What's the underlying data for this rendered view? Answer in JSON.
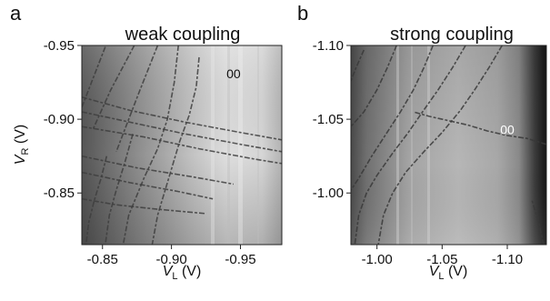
{
  "chart_data": [
    {
      "type": "heatmap",
      "panel_letter": "a",
      "title": "weak coupling",
      "region_label": "00",
      "xlabel_main": "V",
      "xlabel_sub": "L",
      "xlabel_unit": " (V)",
      "ylabel_main": "V",
      "ylabel_sub": "R",
      "ylabel_unit": " (V)",
      "x_range": [
        -0.835,
        -0.98
      ],
      "y_range": [
        -0.815,
        -0.95
      ],
      "x_ticks": [
        {
          "value": -0.85,
          "label": "-0.85"
        },
        {
          "value": -0.9,
          "label": "-0.90"
        },
        {
          "value": -0.95,
          "label": "-0.95"
        }
      ],
      "y_ticks": [
        {
          "value": -0.95,
          "label": "-0.95"
        },
        {
          "value": -0.9,
          "label": "-0.90"
        },
        {
          "value": -0.85,
          "label": "-0.85"
        }
      ],
      "region_label_pos": [
        -0.945,
        -0.931
      ],
      "colormap": "grayscale, darker at lower left, bright region near '00' at upper right",
      "transition_lines": [
        [
          [
            -0.852,
            -0.949
          ],
          [
            -0.842,
            -0.925
          ],
          [
            -0.835,
            -0.908
          ]
        ],
        [
          [
            -0.873,
            -0.95
          ],
          [
            -0.856,
            -0.92
          ],
          [
            -0.843,
            -0.893
          ]
        ],
        [
          [
            -0.89,
            -0.95
          ],
          [
            -0.876,
            -0.917
          ],
          [
            -0.86,
            -0.878
          ]
        ],
        [
          [
            -0.905,
            -0.95
          ],
          [
            -0.902,
            -0.925
          ],
          [
            -0.897,
            -0.9
          ],
          [
            -0.89,
            -0.88
          ],
          [
            -0.88,
            -0.86
          ],
          [
            -0.869,
            -0.835
          ],
          [
            -0.865,
            -0.815
          ]
        ],
        [
          [
            -0.92,
            -0.942
          ],
          [
            -0.918,
            -0.922
          ],
          [
            -0.913,
            -0.903
          ],
          [
            -0.906,
            -0.885
          ],
          [
            -0.898,
            -0.86
          ],
          [
            -0.89,
            -0.835
          ],
          [
            -0.886,
            -0.815
          ]
        ],
        [
          [
            -0.835,
            -0.915
          ],
          [
            -0.87,
            -0.906
          ],
          [
            -0.91,
            -0.898
          ],
          [
            -0.95,
            -0.891
          ],
          [
            -0.98,
            -0.886
          ]
        ],
        [
          [
            -0.835,
            -0.905
          ],
          [
            -0.87,
            -0.898
          ],
          [
            -0.91,
            -0.89
          ],
          [
            -0.95,
            -0.883
          ],
          [
            -0.98,
            -0.878
          ]
        ],
        [
          [
            -0.835,
            -0.895
          ],
          [
            -0.88,
            -0.888
          ],
          [
            -0.92,
            -0.88
          ],
          [
            -0.96,
            -0.873
          ],
          [
            -0.98,
            -0.87
          ]
        ],
        [
          [
            -0.835,
            -0.875
          ],
          [
            -0.875,
            -0.867
          ],
          [
            -0.915,
            -0.861
          ],
          [
            -0.945,
            -0.856
          ]
        ],
        [
          [
            -0.835,
            -0.864
          ],
          [
            -0.87,
            -0.857
          ],
          [
            -0.905,
            -0.851
          ],
          [
            -0.93,
            -0.846
          ]
        ],
        [
          [
            -0.835,
            -0.846
          ],
          [
            -0.86,
            -0.842
          ],
          [
            -0.89,
            -0.839
          ],
          [
            -0.925,
            -0.836
          ]
        ],
        [
          [
            -0.853,
            -0.875
          ],
          [
            -0.849,
            -0.86
          ],
          [
            -0.844,
            -0.845
          ],
          [
            -0.84,
            -0.83
          ],
          [
            -0.838,
            -0.815
          ]
        ],
        [
          [
            -0.872,
            -0.89
          ],
          [
            -0.866,
            -0.87
          ],
          [
            -0.86,
            -0.852
          ],
          [
            -0.855,
            -0.835
          ],
          [
            -0.852,
            -0.815
          ]
        ]
      ]
    },
    {
      "type": "heatmap",
      "panel_letter": "b",
      "title": "strong coupling",
      "region_label": "00",
      "xlabel_main": "V",
      "xlabel_sub": "L",
      "xlabel_unit": " (V)",
      "ylabel_main": "",
      "ylabel_sub": "",
      "ylabel_unit": "",
      "x_range": [
        -0.98,
        -1.13
      ],
      "y_range": [
        -0.965,
        -1.1
      ],
      "x_ticks": [
        {
          "value": -1.0,
          "label": "-1.00"
        },
        {
          "value": -1.05,
          "label": "-1.05"
        },
        {
          "value": -1.1,
          "label": "-1.10"
        }
      ],
      "y_ticks": [
        {
          "value": -1.1,
          "label": "-1.10"
        },
        {
          "value": -1.05,
          "label": "-1.05"
        },
        {
          "value": -1.0,
          "label": "-1.00"
        }
      ],
      "region_label_pos": [
        -1.1,
        -1.043
      ],
      "colormap": "grayscale, dark at left and right edges, lighter across centre",
      "transition_lines": [
        [
          [
            -0.99,
            -1.097
          ],
          [
            -0.984,
            -1.085
          ],
          [
            -0.98,
            -1.076
          ]
        ],
        [
          [
            -1.015,
            -1.1
          ],
          [
            -1.008,
            -1.085
          ],
          [
            -1.0,
            -1.07
          ],
          [
            -0.99,
            -1.055
          ],
          [
            -0.98,
            -1.045
          ]
        ],
        [
          [
            -1.043,
            -1.1
          ],
          [
            -1.036,
            -1.085
          ],
          [
            -1.028,
            -1.07
          ],
          [
            -1.018,
            -1.055
          ],
          [
            -1.007,
            -1.04
          ],
          [
            -0.996,
            -1.025
          ],
          [
            -0.986,
            -1.01
          ],
          [
            -0.98,
            -1.002
          ]
        ],
        [
          [
            -1.068,
            -1.1
          ],
          [
            -1.058,
            -1.085
          ],
          [
            -1.047,
            -1.07
          ],
          [
            -1.035,
            -1.055
          ],
          [
            -1.024,
            -1.041
          ],
          [
            -1.012,
            -1.027
          ],
          [
            -1.0,
            -1.012
          ],
          [
            -0.992,
            -1.0
          ],
          [
            -0.986,
            -0.985
          ],
          [
            -0.983,
            -0.965
          ]
        ],
        [
          [
            -1.096,
            -1.1
          ],
          [
            -1.086,
            -1.085
          ],
          [
            -1.075,
            -1.07
          ],
          [
            -1.064,
            -1.056
          ],
          [
            -1.05,
            -1.041
          ],
          [
            -1.036,
            -1.028
          ],
          [
            -1.022,
            -1.014
          ],
          [
            -1.012,
            -1.0
          ],
          [
            -1.005,
            -0.985
          ],
          [
            -1.001,
            -0.965
          ]
        ],
        [
          [
            -1.13,
            -1.033
          ],
          [
            -1.115,
            -1.037
          ],
          [
            -1.1,
            -1.039
          ],
          [
            -1.085,
            -1.042
          ],
          [
            -1.07,
            -1.046
          ],
          [
            -1.055,
            -1.049
          ],
          [
            -1.04,
            -1.052
          ],
          [
            -1.028,
            -1.055
          ]
        ],
        [
          [
            -1.128,
            -0.965
          ],
          [
            -1.124,
            -0.98
          ],
          [
            -1.119,
            -0.995
          ]
        ]
      ]
    }
  ]
}
